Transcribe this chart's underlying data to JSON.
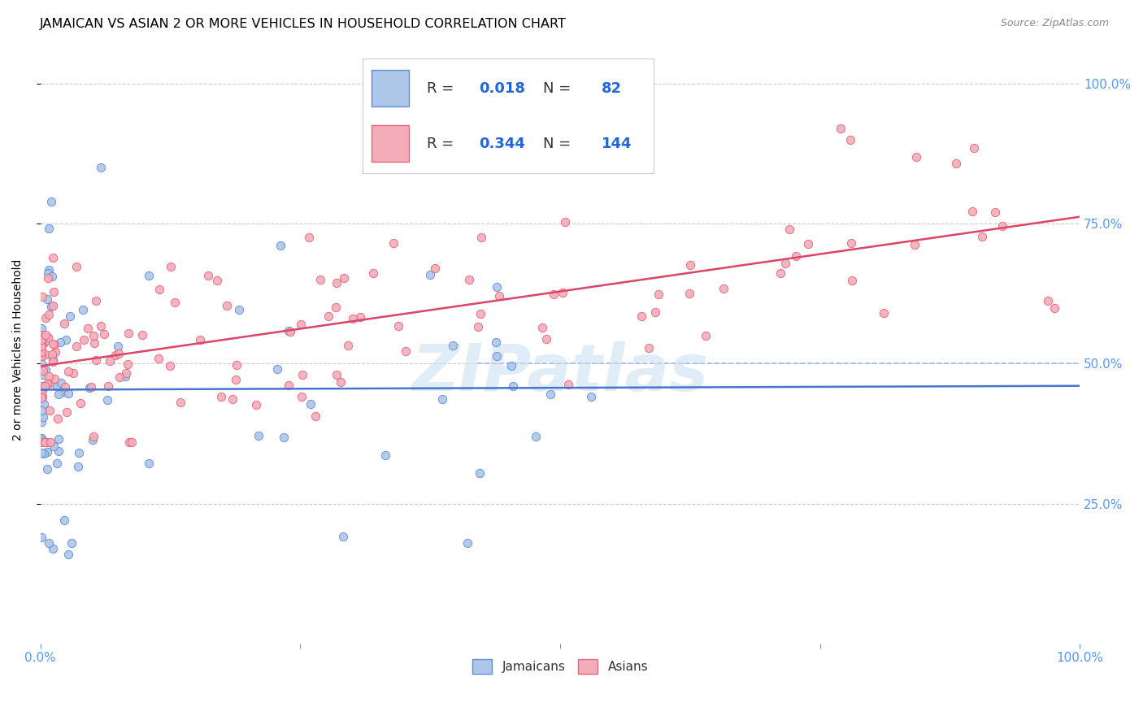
{
  "title": "JAMAICAN VS ASIAN 2 OR MORE VEHICLES IN HOUSEHOLD CORRELATION CHART",
  "source": "Source: ZipAtlas.com",
  "ylabel": "2 or more Vehicles in Household",
  "background_color": "#ffffff",
  "grid_color": "#cccccc",
  "blue_color": "#5b8dd9",
  "blue_fill": "#aec6e8",
  "pink_color": "#e8607a",
  "pink_fill": "#f4adb8",
  "r_blue": 0.018,
  "n_blue": 82,
  "r_pink": 0.344,
  "n_pink": 144,
  "watermark": "ZIPatlas",
  "legend_jamaicans": "Jamaicans",
  "legend_asians": "Asians",
  "axis_label_color": "#5599ff",
  "tick_color": "#5599ff",
  "blue_line_color": "#4477cc",
  "pink_line_color": "#dd4466",
  "dashed_line_color": "#99bbee",
  "legend_text_color": "#333333",
  "legend_value_color": "#2266dd"
}
